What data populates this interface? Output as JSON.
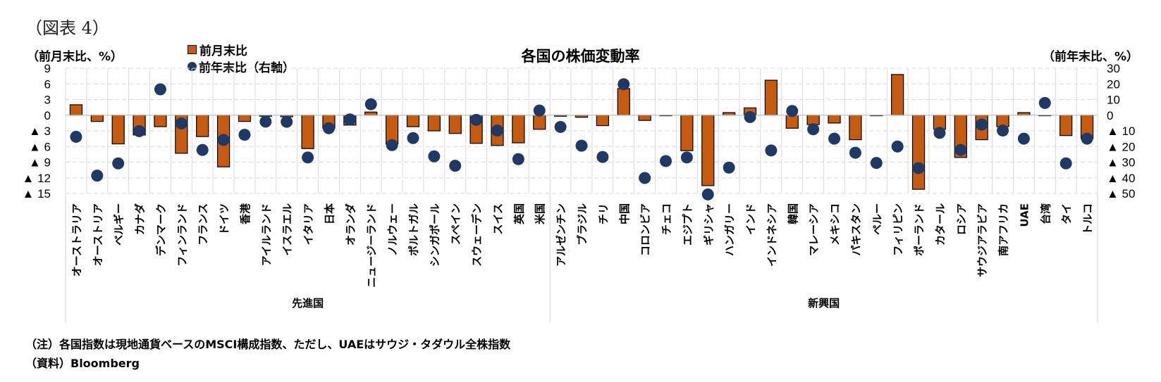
{
  "figure_label": "（図表 4）",
  "notes": {
    "note": "（注）各国指数は現地通貨ベースのMSCI構成指数、ただし、UAEはサウジ・タダウル全株指数",
    "source": "（資料）Bloomberg"
  },
  "colors": {
    "bar": "#C55A11",
    "dot": "#1F3864",
    "grid": "#D9D9D9"
  },
  "chart_data": {
    "type": "bar+scatter",
    "title": "各国の株価変動率",
    "left_axis_label": "（前月末比、%）",
    "right_axis_label": "（前年末比、%）",
    "left_ylim": [
      -15,
      9
    ],
    "left_ticks": [
      9,
      6,
      3,
      0,
      -3,
      -6,
      -9,
      -12,
      -15
    ],
    "left_tick_labels": [
      "9",
      "6",
      "3",
      "0",
      "▲ 3",
      "▲ 6",
      "▲ 9",
      "▲ 12",
      "▲ 15"
    ],
    "right_ylim": [
      -50,
      30
    ],
    "right_ticks": [
      30,
      20,
      10,
      0,
      -10,
      -20,
      -30,
      -40,
      -50
    ],
    "right_tick_labels": [
      "30",
      "20",
      "10",
      "0",
      "▲ 10",
      "▲ 20",
      "▲ 30",
      "▲ 40",
      "▲ 50"
    ],
    "grid": true,
    "legend_position": "top-left",
    "groups": [
      {
        "name": "先進国",
        "count": 23
      },
      {
        "name": "新興国",
        "count": 26
      }
    ],
    "categories": [
      "オーストラリア",
      "オーストリア",
      "ベルギー",
      "カナダ",
      "デンマーク",
      "フィンランド",
      "フランス",
      "ドイツ",
      "香港",
      "アイルランド",
      "イスラエル",
      "イタリア",
      "日本",
      "オランダ",
      "ニュージーランド",
      "ノルウェー",
      "ポルトガル",
      "シンガポール",
      "スペイン",
      "スウェーデン",
      "スイス",
      "英国",
      "米国",
      "アルゼンチン",
      "ブラジル",
      "チリ",
      "中国",
      "コロンビア",
      "チェコ",
      "エジプト",
      "ギリシャ",
      "ハンガリー",
      "インド",
      "インドネシア",
      "韓国",
      "マレーシア",
      "メキシコ",
      "パキスタン",
      "ペルー",
      "フィリピン",
      "ポーランド",
      "カタール",
      "ロシア",
      "サウジアラビア",
      "南アフリカ",
      "UAE",
      "台湾",
      "タイ",
      "トルコ"
    ],
    "series": [
      {
        "name": "前月末比",
        "type": "bar",
        "axis": "left",
        "values": [
          2.0,
          -1.2,
          -5.5,
          -3.8,
          -2.2,
          -7.3,
          -4.1,
          -9.9,
          -1.2,
          -0.2,
          -0.3,
          -6.4,
          -2.5,
          -1.9,
          0.6,
          -5.5,
          -2.2,
          -3.0,
          -3.5,
          -5.4,
          -5.8,
          -5.3,
          -2.7,
          -0.2,
          -0.4,
          -2.0,
          5.1,
          -1.0,
          -0.1,
          -6.8,
          -13.5,
          0.5,
          1.4,
          6.7,
          -2.5,
          -1.8,
          -1.5,
          -4.7,
          -0.1,
          7.8,
          -14.2,
          -2.7,
          -8.1,
          -4.7,
          -2.2,
          0.5,
          0.0,
          -3.9,
          -4.5
        ]
      },
      {
        "name": "前年末比（右軸）",
        "type": "scatter",
        "axis": "right",
        "values": [
          -13.8,
          -38.6,
          -30.8,
          -10.2,
          16.5,
          -5.3,
          -22.2,
          -15.8,
          -12.5,
          -4.1,
          -4.2,
          -27.0,
          -8.3,
          -2.7,
          7.0,
          -19.1,
          -14.6,
          -26.3,
          -32.3,
          -3.0,
          -9.8,
          -28.1,
          3.0,
          -7.5,
          -19.5,
          -26.7,
          19.8,
          -40.1,
          -29.3,
          -27.0,
          -50.6,
          -33.5,
          -1.2,
          -22.5,
          2.7,
          -9.0,
          -15.0,
          -24.0,
          -30.5,
          -20.0,
          -33.8,
          -11.3,
          -22.2,
          -6.0,
          -9.8,
          -15.0,
          7.8,
          -30.8,
          -15.0
        ]
      }
    ]
  }
}
